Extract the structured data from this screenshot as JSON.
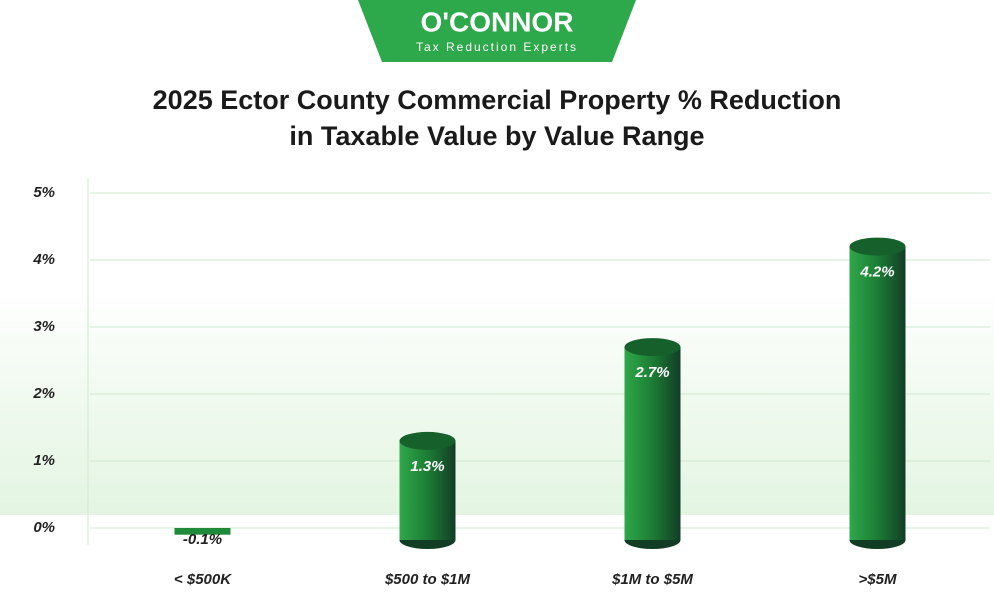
{
  "logo": {
    "name": "O'CONNOR",
    "tagline": "Tax Reduction Experts"
  },
  "chart_data": {
    "type": "bar",
    "title": [
      "2025 Ector County Commercial Property % Reduction",
      "in Taxable Value by Value Range"
    ],
    "categories": [
      "< $500K",
      "$500 to $1M",
      "$1M to $5M",
      ">$5M"
    ],
    "values": [
      -0.1,
      1.3,
      2.7,
      4.2
    ],
    "value_labels": [
      "-0.1%",
      "1.3%",
      "2.7%",
      "4.2%"
    ],
    "color": "#1f8a3a",
    "ylim": [
      0,
      5
    ],
    "yticks": [
      {
        "value": 0,
        "label": "0%"
      },
      {
        "value": 1,
        "label": "1%"
      },
      {
        "value": 2,
        "label": "2%"
      },
      {
        "value": 3,
        "label": "3%"
      },
      {
        "value": 4,
        "label": "4%"
      },
      {
        "value": 5,
        "label": "5%"
      }
    ],
    "grid": true
  }
}
